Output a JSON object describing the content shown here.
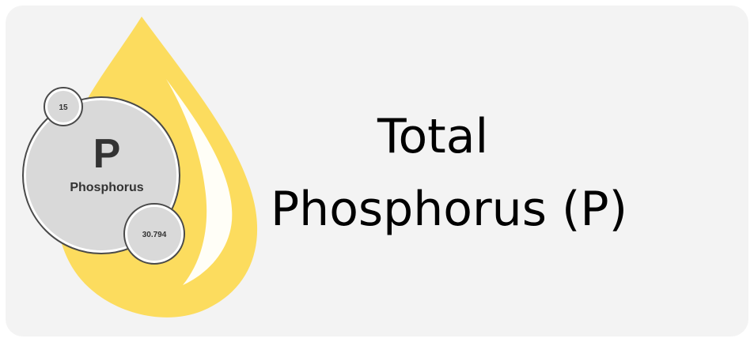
{
  "card": {
    "background": "#f3f3f3"
  },
  "title": {
    "line1": "Total",
    "line2": "Phosphorus (P)"
  },
  "element_badge": {
    "symbol": "P",
    "name": "Phosphorus",
    "atomic_number": "15",
    "atomic_mass": "30.794"
  },
  "colors": {
    "drop": "#fcdc5e",
    "bubble_fill": "#d9d9d9",
    "bubble_stroke": "#4a4a4a",
    "text": "#000000"
  },
  "icons": {
    "drop": "droplet-icon"
  }
}
